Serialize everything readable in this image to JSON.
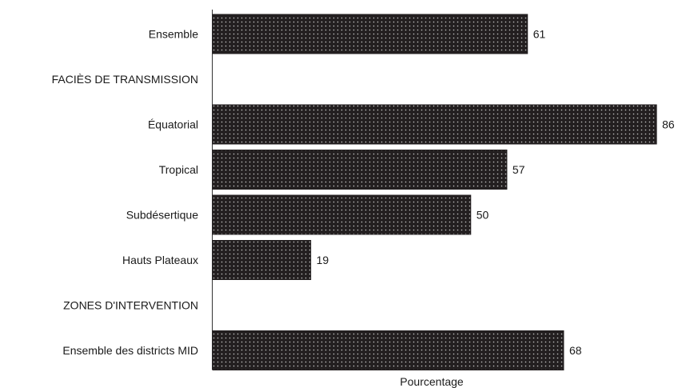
{
  "chart_data": {
    "type": "bar",
    "orientation": "horizontal",
    "xlabel": "Pourcentage",
    "ylabel": "",
    "xlim": [
      0,
      100
    ],
    "grid": false,
    "categories": [
      "Ensemble",
      "FACIÈS DE TRANSMISSION",
      "Équatorial",
      "Tropical",
      "Subdésertique",
      "Hauts Plateaux",
      "ZONES D'INTERVENTION",
      "Ensemble des districts  MID"
    ],
    "values": [
      61,
      null,
      86,
      57,
      50,
      19,
      null,
      68
    ],
    "value_labels": [
      "61",
      "",
      "86",
      "57",
      "50",
      "19",
      "",
      "68"
    ],
    "bar_color": "#231f20",
    "dot_color": "#c8c8c8"
  }
}
